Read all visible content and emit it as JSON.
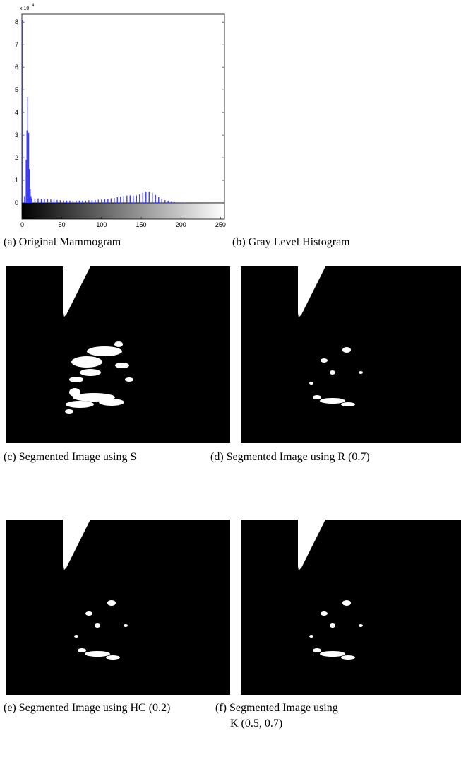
{
  "chart_data": {
    "type": "histogram",
    "y_scale_label": {
      "base": "x 10",
      "exponent": "4"
    },
    "x": [
      0,
      3,
      5,
      6,
      7,
      8,
      9,
      10,
      11,
      12,
      16,
      20,
      24,
      28,
      32,
      36,
      40,
      44,
      48,
      52,
      56,
      60,
      64,
      68,
      72,
      76,
      80,
      84,
      88,
      92,
      96,
      100,
      104,
      108,
      112,
      116,
      120,
      124,
      128,
      132,
      136,
      140,
      144,
      148,
      152,
      156,
      160,
      164,
      168,
      172,
      176,
      180,
      184,
      188,
      192,
      196,
      200,
      204
    ],
    "values": [
      8.1,
      0.3,
      1.9,
      3.2,
      4.7,
      3.1,
      1.5,
      0.6,
      0.3,
      0.2,
      0.2,
      0.2,
      0.18,
      0.17,
      0.16,
      0.15,
      0.14,
      0.13,
      0.12,
      0.11,
      0.1,
      0.1,
      0.1,
      0.1,
      0.1,
      0.1,
      0.1,
      0.12,
      0.12,
      0.13,
      0.14,
      0.15,
      0.16,
      0.18,
      0.2,
      0.22,
      0.25,
      0.28,
      0.3,
      0.32,
      0.33,
      0.32,
      0.33,
      0.38,
      0.45,
      0.5,
      0.5,
      0.45,
      0.35,
      0.25,
      0.18,
      0.12,
      0.08,
      0.05,
      0.03,
      0.02,
      0.01,
      0.01
    ],
    "color": "#3a3aff",
    "xlim": [
      0,
      255
    ],
    "xticks": [
      0,
      50,
      100,
      150,
      200,
      250
    ],
    "ylim": [
      0,
      8.35
    ],
    "yticks": [
      0,
      1,
      2,
      3,
      4,
      5,
      6,
      7,
      8
    ]
  },
  "captions": {
    "a": "(a) Original Mammogram",
    "b": "(b) Gray Level Histogram",
    "c": "(c) Segmented Image using S",
    "d": "(d) Segmented Image using R (0.7)",
    "e": "(e) Segmented Image using HC (0.2)",
    "f": [
      "(f) Segmented Image using",
      "K (0.5, 0.7)"
    ]
  }
}
